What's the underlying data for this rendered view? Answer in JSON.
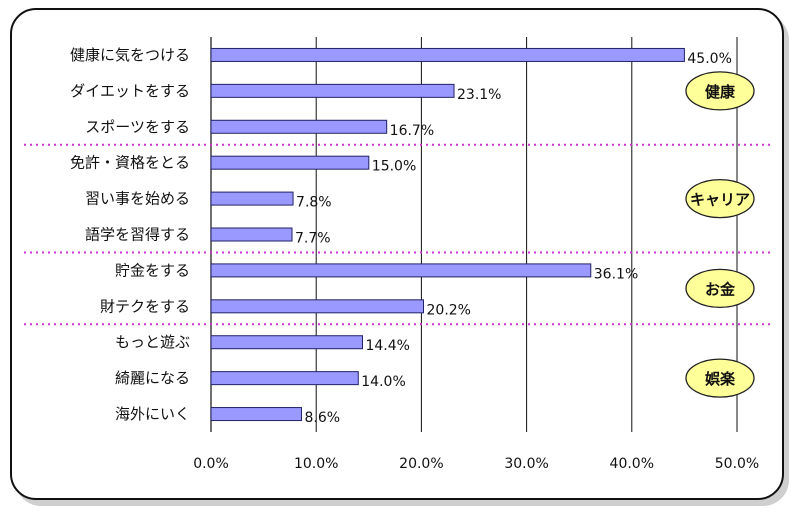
{
  "chart_data": {
    "type": "bar",
    "orientation": "horizontal",
    "categories": [
      "健康に気をつける",
      "ダイエットをする",
      "スポーツをする",
      "免許・資格をとる",
      "習い事を始める",
      "語学を習得する",
      "貯金をする",
      "財テクをする",
      "もっと遊ぶ",
      "綺麗になる",
      "海外にいく"
    ],
    "values": [
      45.0,
      23.1,
      16.7,
      15.0,
      7.8,
      7.7,
      36.1,
      20.2,
      14.4,
      14.0,
      8.6
    ],
    "value_labels": [
      "45.0%",
      "23.1%",
      "16.7%",
      "15.0%",
      "7.8%",
      "7.7%",
      "36.1%",
      "20.2%",
      "14.4%",
      "14.0%",
      "8.6%"
    ],
    "xlim": [
      0,
      50
    ],
    "x_ticks": [
      0,
      10,
      20,
      30,
      40,
      50
    ],
    "x_tick_labels": [
      "0.0%",
      "10.0%",
      "20.0%",
      "30.0%",
      "40.0%",
      "50.0%"
    ],
    "grid": true,
    "groups": [
      {
        "label": "健康",
        "start": 0,
        "count": 3
      },
      {
        "label": "キャリア",
        "start": 3,
        "count": 3
      },
      {
        "label": "お金",
        "start": 6,
        "count": 2
      },
      {
        "label": "娯楽",
        "start": 8,
        "count": 3
      }
    ],
    "colors": {
      "bar": "#9999ff",
      "bar_border": "#222266",
      "grid": "#111111",
      "divider": "#cc33cc",
      "group_fill": "#ffff99",
      "group_border": "#222222"
    }
  }
}
